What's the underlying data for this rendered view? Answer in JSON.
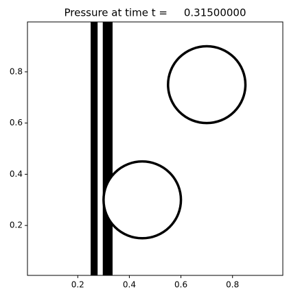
{
  "chart_data": {
    "type": "contour",
    "title": "Pressure at time t =     0.31500000",
    "xlim": [
      0.005,
      0.995
    ],
    "ylim": [
      0.005,
      0.995
    ],
    "xticks": [
      0.2,
      0.4,
      0.6,
      0.8
    ],
    "yticks": [
      0.2,
      0.4,
      0.6,
      0.8
    ],
    "color": "#000000",
    "circles": [
      {
        "x": 0.7,
        "y": 0.75,
        "r": 0.15
      },
      {
        "x": 0.45,
        "y": 0.3,
        "r": 0.15
      }
    ],
    "bands": [
      [
        0.25,
        0.277
      ],
      [
        0.297,
        0.335
      ]
    ]
  }
}
